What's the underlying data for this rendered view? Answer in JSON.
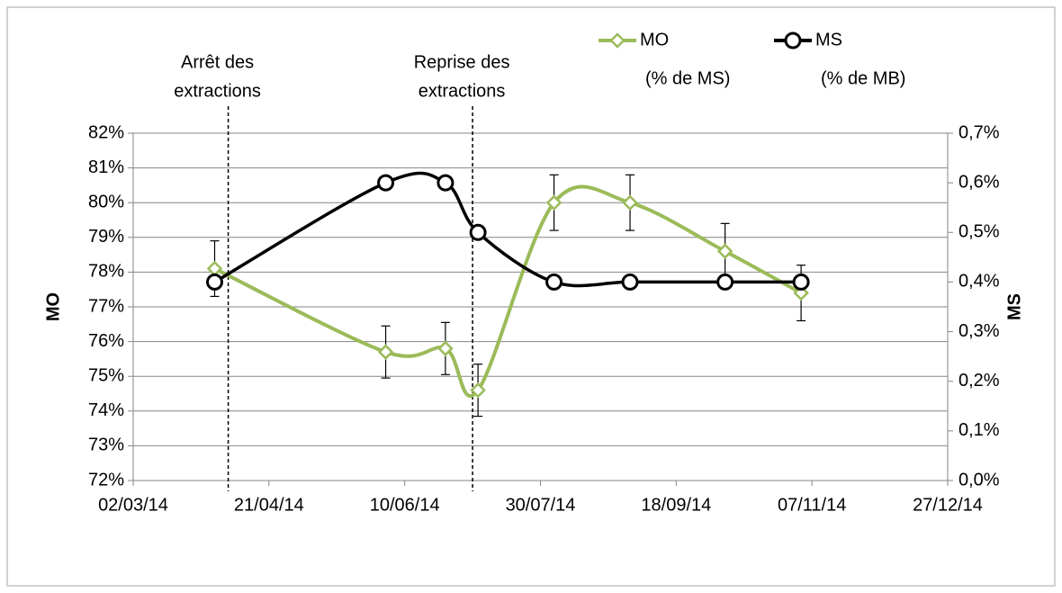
{
  "chart_data": {
    "type": "line",
    "x": [
      "01/04/14",
      "03/06/14",
      "25/06/14",
      "07/07/14",
      "04/08/14",
      "01/09/14",
      "06/10/14",
      "03/11/14"
    ],
    "series": [
      {
        "name": "MO",
        "legend_sublabel": "(% de MS)",
        "color": "#9bbb59",
        "marker": "diamond",
        "axis": "y",
        "values": [
          78.1,
          75.7,
          75.8,
          74.6,
          80.0,
          80.0,
          78.6,
          77.4
        ],
        "errors": [
          0.8,
          0.75,
          0.75,
          0.75,
          0.8,
          0.8,
          0.8,
          0.8
        ]
      },
      {
        "name": "MS",
        "legend_sublabel": "(% de MB)",
        "color": "#000000",
        "marker": "circle",
        "axis": "y2",
        "values": [
          0.4,
          0.6,
          0.6,
          0.5,
          0.4,
          0.4,
          0.4,
          0.4
        ]
      }
    ],
    "xlim": [
      "02/03/14",
      "27/12/14"
    ],
    "xticks": [
      "02/03/14",
      "21/04/14",
      "10/06/14",
      "30/07/14",
      "18/09/14",
      "07/11/14",
      "27/12/14"
    ],
    "ylabel": "MO",
    "y2label": "MS",
    "ylim": [
      72,
      82
    ],
    "yticks": [
      {
        "value": 72,
        "label": "72%"
      },
      {
        "value": 73,
        "label": "73%"
      },
      {
        "value": 74,
        "label": "74%"
      },
      {
        "value": 75,
        "label": "75%"
      },
      {
        "value": 76,
        "label": "76%"
      },
      {
        "value": 77,
        "label": "77%"
      },
      {
        "value": 78,
        "label": "78%"
      },
      {
        "value": 79,
        "label": "79%"
      },
      {
        "value": 80,
        "label": "80%"
      },
      {
        "value": 81,
        "label": "81%"
      },
      {
        "value": 82,
        "label": "82%"
      }
    ],
    "y2lim": [
      0,
      0.7
    ],
    "y2ticks": [
      {
        "value": 0,
        "label": "0,0%"
      },
      {
        "value": 0.1,
        "label": "0,1%"
      },
      {
        "value": 0.2,
        "label": "0,2%"
      },
      {
        "value": 0.3,
        "label": "0,3%"
      },
      {
        "value": 0.4,
        "label": "0,4%"
      },
      {
        "value": 0.5,
        "label": "0,5%"
      },
      {
        "value": 0.6,
        "label": "0,6%"
      },
      {
        "value": 0.7,
        "label": "0,7%"
      }
    ],
    "grid": true,
    "annotations": [
      {
        "x": "06/04/14",
        "lines": [
          "Arrêt des",
          "extractions"
        ]
      },
      {
        "x": "05/07/14",
        "lines": [
          "Reprise des",
          "extractions"
        ]
      }
    ]
  }
}
